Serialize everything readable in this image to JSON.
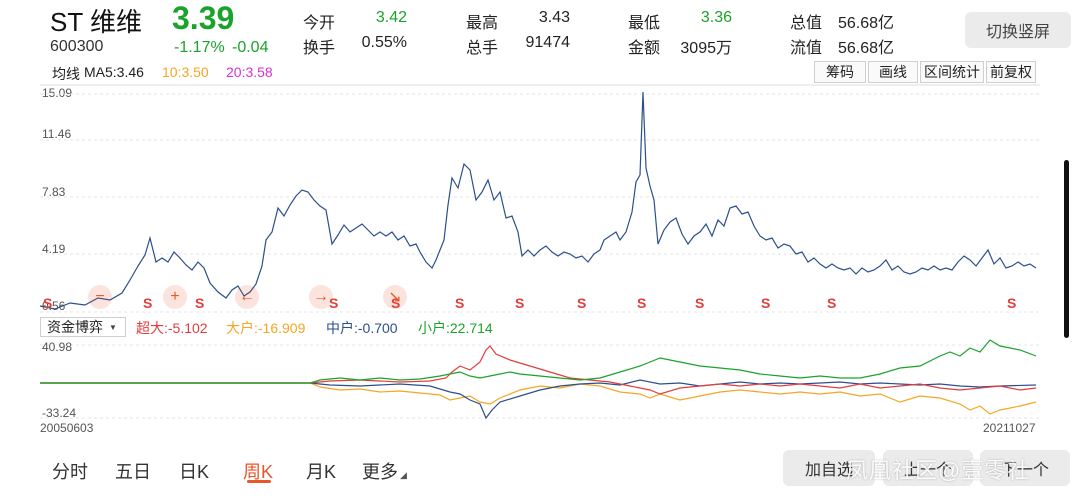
{
  "header": {
    "name": "ST 维维",
    "code": "600300",
    "price": "3.39",
    "change_pct": "-1.17%",
    "change": "-0.04",
    "quotes": [
      {
        "label": "今开",
        "value": "3.42",
        "color": "green"
      },
      {
        "label": "最高",
        "value": "3.43",
        "color": "normal"
      },
      {
        "label": "最低",
        "value": "3.36",
        "color": "green"
      },
      {
        "label": "总值",
        "value": "56.68亿",
        "color": "normal"
      },
      {
        "label": "换手",
        "value": "0.55%",
        "color": "normal"
      },
      {
        "label": "总手",
        "value": "91474",
        "color": "normal"
      },
      {
        "label": "金额",
        "value": "3095万",
        "color": "normal"
      },
      {
        "label": "流值",
        "value": "56.68亿",
        "color": "normal"
      }
    ],
    "switch_label": "切换竖屏"
  },
  "ma_bar": {
    "title": "均线",
    "ma5": "MA5:3.46",
    "ma10": "10:3.50",
    "ma20": "20:3.58",
    "ma10_color": "#f5a623",
    "ma20_color": "#d633d6"
  },
  "toolbar": [
    "筹码",
    "画线",
    "区间统计",
    "前复权"
  ],
  "price_axis": [
    "15.09",
    "11.46",
    "7.83",
    "4.19",
    "0.56"
  ],
  "signal_marker": "S",
  "money_flow": {
    "selector": "资金博弈",
    "chaoda": "超大:-5.102",
    "dahu": "大户:-16.909",
    "zhonghu": "中户:-0.700",
    "xiaohu": "小户:22.714",
    "axis_top": "40.98",
    "axis_bottom": "-33.24"
  },
  "dates": {
    "start": "20050603",
    "end": "20211027"
  },
  "bottom_tabs": [
    "分时",
    "五日",
    "日K",
    "周K",
    "月K",
    "更多"
  ],
  "active_tab": "周K",
  "actions": {
    "add": "加自选",
    "prev": "上一个",
    "next": "下一个"
  },
  "watermark": "凤凰社区@壹零社",
  "colors": {
    "price_line": "#2c4f8c",
    "up": "#e23d3d",
    "down": "#1aa32a",
    "accent": "#e8562a",
    "chaoda": "#e23d3d",
    "dahu": "#f5a623",
    "zhonghu": "#2c4f8c",
    "xiaohu": "#1aa32a"
  }
}
